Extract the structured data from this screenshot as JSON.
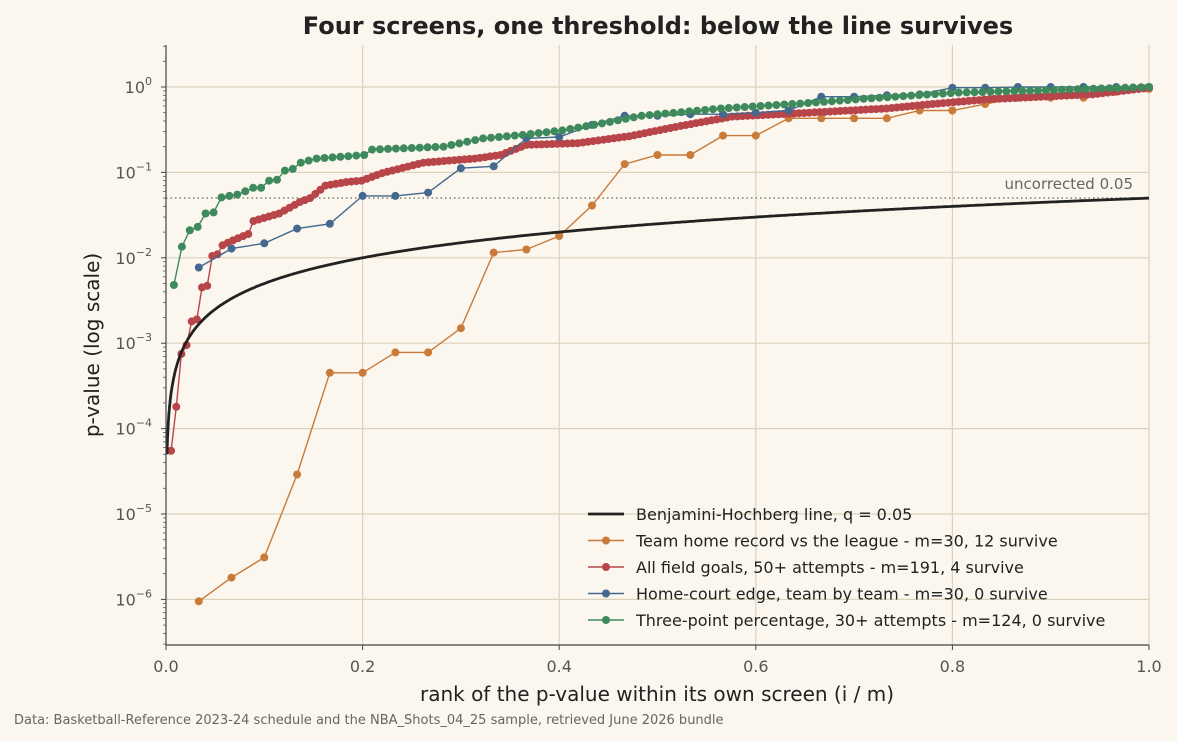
{
  "chart_data": {
    "type": "line",
    "title": "Four screens, one threshold: below the line survives",
    "xlabel": "rank of the p-value within its own screen (i / m)",
    "ylabel": "p-value (log scale)",
    "xlim": [
      0,
      1.0
    ],
    "ylim": [
      3e-07,
      3.2
    ],
    "yscale": "log",
    "x_ticks": [
      "0.0",
      "0.2",
      "0.4",
      "0.6",
      "0.8",
      "1.0"
    ],
    "y_ticks": [
      {
        "base": "10",
        "exp": "0",
        "value": 1
      },
      {
        "base": "10",
        "exp": "−1",
        "value": 0.1
      },
      {
        "base": "10",
        "exp": "−2",
        "value": 0.01
      },
      {
        "base": "10",
        "exp": "−3",
        "value": 0.001
      },
      {
        "base": "10",
        "exp": "−4",
        "value": 0.0001
      },
      {
        "base": "10",
        "exp": "−5",
        "value": 1e-05
      },
      {
        "base": "10",
        "exp": "−6",
        "value": 1e-06
      }
    ],
    "grid": true,
    "legend_position": "lower-right",
    "reference_line": {
      "y": 0.05,
      "label": "uncorrected 0.05",
      "color": "#8a8a7a"
    },
    "bh_line": {
      "name": "Benjamini-Hochberg line, q = 0.05",
      "q": 0.05,
      "color": "#222222"
    },
    "series": [
      {
        "name": "Team home record vs the league - m=30, 12 survive",
        "color": "#c97b3a",
        "m": 30,
        "values": [
          9.5e-07,
          1.8e-06,
          3.1e-06,
          2.9e-05,
          0.00045,
          0.00045,
          0.00078,
          0.00078,
          0.0015,
          0.0115,
          0.0125,
          0.018,
          0.041,
          0.125,
          0.16,
          0.16,
          0.27,
          0.27,
          0.43,
          0.43,
          0.43,
          0.43,
          0.53,
          0.53,
          0.63,
          0.75,
          0.75,
          0.75,
          0.88,
          0.95
        ]
      },
      {
        "name": "All field goals, 50+ attempts - m=191, 4 survive",
        "color": "#b8454a",
        "m": 191,
        "anchors": [
          [
            1,
            5.5e-05
          ],
          [
            2,
            0.00018
          ],
          [
            3,
            0.00075
          ],
          [
            4,
            0.00095
          ],
          [
            5,
            0.0018
          ],
          [
            6,
            0.0019
          ],
          [
            7,
            0.0045
          ],
          [
            8,
            0.0047
          ],
          [
            9,
            0.0105
          ],
          [
            10,
            0.011
          ],
          [
            11,
            0.014
          ],
          [
            13,
            0.016
          ],
          [
            16,
            0.019
          ],
          [
            17,
            0.027
          ],
          [
            22,
            0.033
          ],
          [
            26,
            0.045
          ],
          [
            28,
            0.05
          ],
          [
            31,
            0.07
          ],
          [
            35,
            0.077
          ],
          [
            38,
            0.08
          ],
          [
            42,
            0.098
          ],
          [
            50,
            0.13
          ],
          [
            60,
            0.145
          ],
          [
            65,
            0.16
          ],
          [
            70,
            0.21
          ],
          [
            80,
            0.22
          ],
          [
            90,
            0.265
          ],
          [
            100,
            0.35
          ],
          [
            110,
            0.45
          ],
          [
            125,
            0.5
          ],
          [
            140,
            0.56
          ],
          [
            150,
            0.64
          ],
          [
            160,
            0.72
          ],
          [
            180,
            0.82
          ],
          [
            191,
            0.98
          ]
        ]
      },
      {
        "name": "Home-court edge, team by team - m=30, 0 survive",
        "color": "#44688f",
        "m": 30,
        "values": [
          0.0077,
          0.0128,
          0.0148,
          0.022,
          0.025,
          0.053,
          0.053,
          0.058,
          0.112,
          0.118,
          0.25,
          0.26,
          0.36,
          0.46,
          0.46,
          0.48,
          0.48,
          0.5,
          0.53,
          0.77,
          0.77,
          0.8,
          0.82,
          0.98,
          0.98,
          1.0,
          1.0,
          1.0,
          1.0,
          1.0
        ]
      },
      {
        "name": "Three-point percentage, 30+ attempts - m=124, 0 survive",
        "color": "#3e8a5c",
        "m": 124,
        "anchors": [
          [
            1,
            0.0048
          ],
          [
            2,
            0.0135
          ],
          [
            3,
            0.021
          ],
          [
            4,
            0.023
          ],
          [
            5,
            0.033
          ],
          [
            6,
            0.034
          ],
          [
            7,
            0.051
          ],
          [
            8,
            0.053
          ],
          [
            9,
            0.055
          ],
          [
            10,
            0.06
          ],
          [
            11,
            0.066
          ],
          [
            12,
            0.066
          ],
          [
            13,
            0.08
          ],
          [
            14,
            0.082
          ],
          [
            15,
            0.105
          ],
          [
            16,
            0.11
          ],
          [
            17,
            0.13
          ],
          [
            19,
            0.145
          ],
          [
            25,
            0.16
          ],
          [
            26,
            0.185
          ],
          [
            35,
            0.2
          ],
          [
            40,
            0.25
          ],
          [
            45,
            0.275
          ],
          [
            50,
            0.31
          ],
          [
            55,
            0.375
          ],
          [
            60,
            0.46
          ],
          [
            70,
            0.56
          ],
          [
            80,
            0.64
          ],
          [
            90,
            0.75
          ],
          [
            100,
            0.86
          ],
          [
            110,
            0.91
          ],
          [
            124,
            1.0
          ]
        ]
      }
    ]
  },
  "source_note": "Data: Basketball-Reference 2023-24 schedule and the NBA_Shots_04_25 sample, retrieved June 2026 bundle"
}
